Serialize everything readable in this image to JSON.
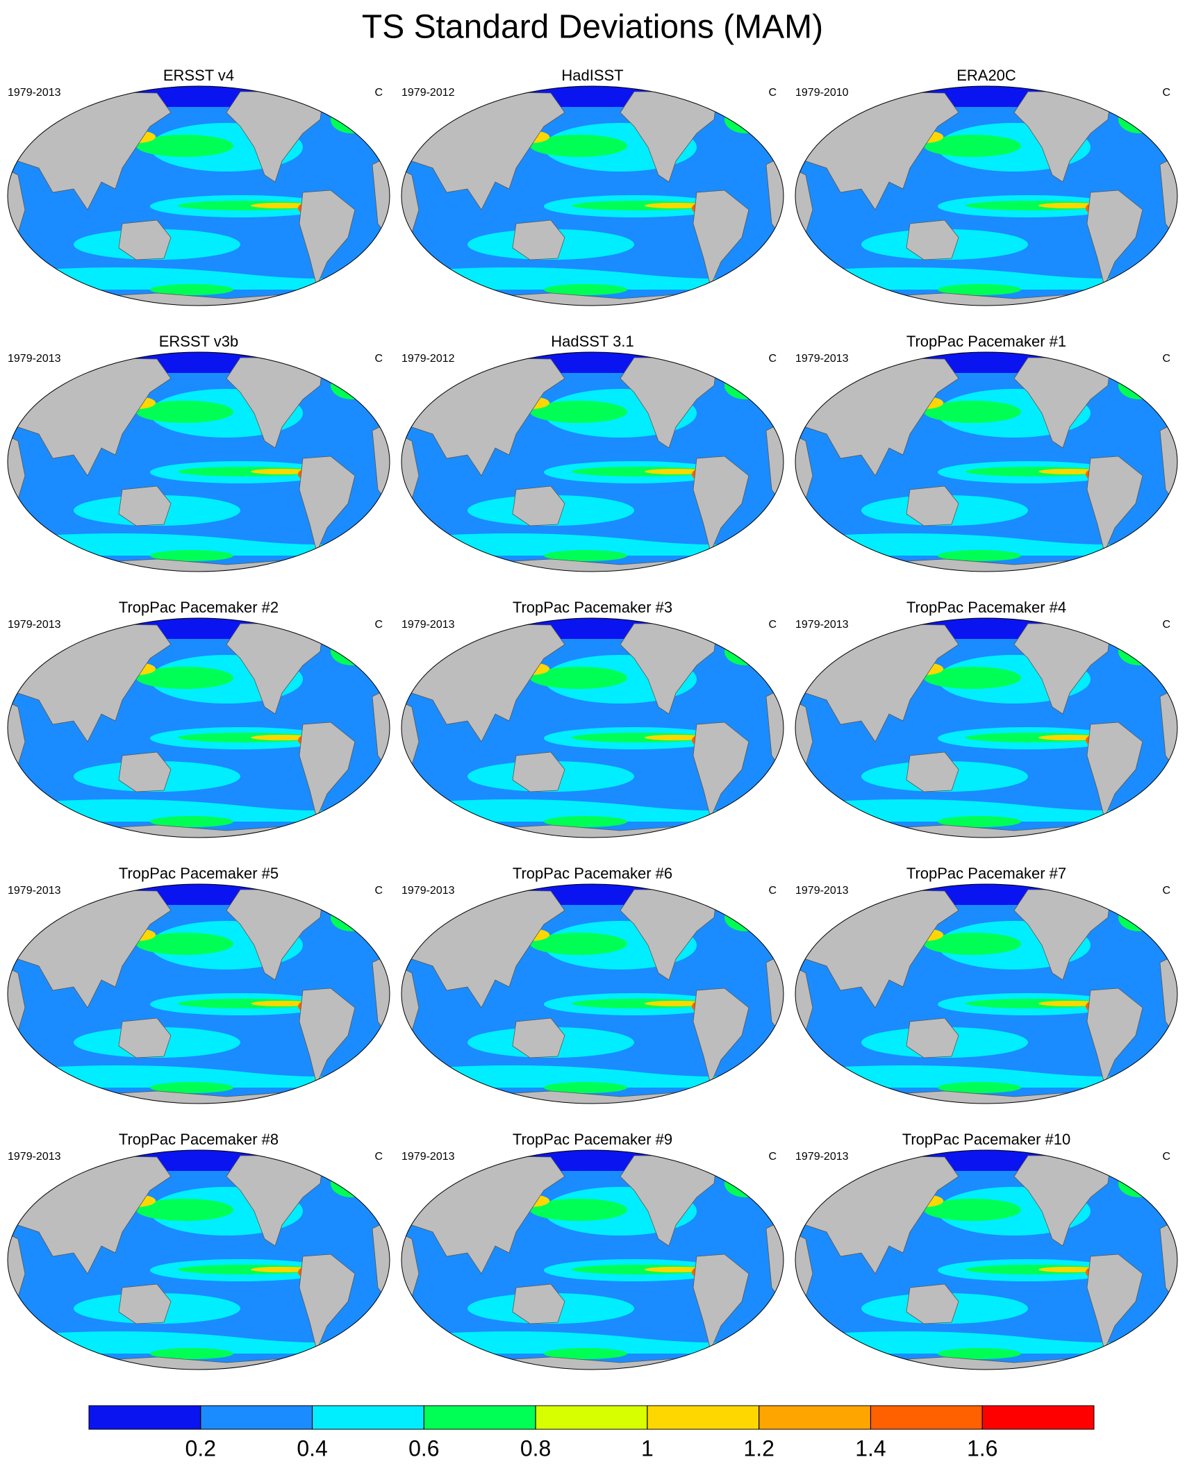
{
  "title": "TS Standard Deviations (MAM)",
  "panels": [
    {
      "title": "ERSST v4",
      "period": "1979-2013",
      "units": "C"
    },
    {
      "title": "HadISST",
      "period": "1979-2012",
      "units": "C"
    },
    {
      "title": "ERA20C",
      "period": "1979-2010",
      "units": "C"
    },
    {
      "title": "ERSST v3b",
      "period": "1979-2013",
      "units": "C"
    },
    {
      "title": "HadSST 3.1",
      "period": "1979-2012",
      "units": "C"
    },
    {
      "title": "TropPac Pacemaker #1",
      "period": "1979-2013",
      "units": "C"
    },
    {
      "title": "TropPac Pacemaker #2",
      "period": "1979-2013",
      "units": "C"
    },
    {
      "title": "TropPac Pacemaker #3",
      "period": "1979-2013",
      "units": "C"
    },
    {
      "title": "TropPac Pacemaker #4",
      "period": "1979-2013",
      "units": "C"
    },
    {
      "title": "TropPac Pacemaker #5",
      "period": "1979-2013",
      "units": "C"
    },
    {
      "title": "TropPac Pacemaker #6",
      "period": "1979-2013",
      "units": "C"
    },
    {
      "title": "TropPac Pacemaker #7",
      "period": "1979-2013",
      "units": "C"
    },
    {
      "title": "TropPac Pacemaker #8",
      "period": "1979-2013",
      "units": "C"
    },
    {
      "title": "TropPac Pacemaker #9",
      "period": "1979-2013",
      "units": "C"
    },
    {
      "title": "TropPac Pacemaker #10",
      "period": "1979-2013",
      "units": "C"
    }
  ],
  "colorbar": {
    "colors": [
      "#0a14f0",
      "#1a8cff",
      "#00eeff",
      "#00ff55",
      "#d8ff00",
      "#ffd700",
      "#ffa500",
      "#ff6000",
      "#ff0000"
    ],
    "lim": [
      0,
      1.8
    ],
    "ticks": [
      0.2,
      0.4,
      0.6,
      0.8,
      1,
      1.2,
      1.4,
      1.6
    ]
  }
}
